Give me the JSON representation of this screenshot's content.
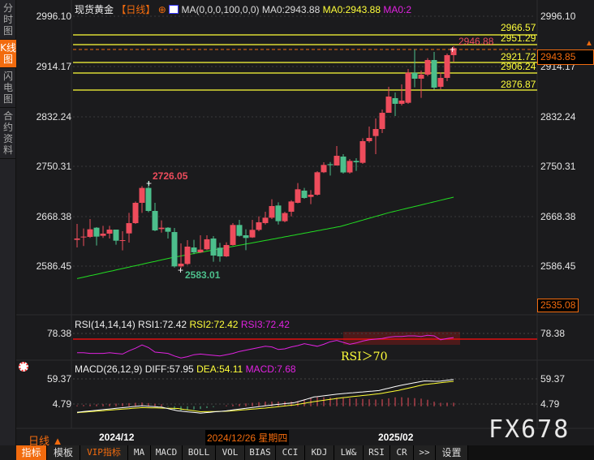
{
  "sidebar": {
    "items": [
      {
        "label": "分时图"
      },
      {
        "label": "K线图",
        "active": true
      },
      {
        "label": "闪电图"
      },
      {
        "label": "合约资料"
      }
    ]
  },
  "header": {
    "instrument": "现货黄金",
    "period": "【日线】",
    "ma_params": "MA(0,0,0,100,0,0)",
    "ma0_a": "MA0:2943.88",
    "ma0_b": "MA0:2943.88",
    "ma0_c": "MA0:2"
  },
  "price_axis": {
    "labels": [
      "2996.10",
      "2914.17",
      "2832.24",
      "2750.31",
      "2668.38",
      "2586.45"
    ],
    "current_price": "2943.85",
    "bottom_value": "2535.08"
  },
  "levels": [
    "2966.57",
    "2951.29",
    "2921.72",
    "2906.24",
    "2876.87"
  ],
  "annotations": {
    "high": "2726.05",
    "low": "2583.01",
    "latest_high": "2946.88"
  },
  "rsi": {
    "title": "RSI(14,14,14) RSI1:72.42",
    "rsi2": "RSI2:72.42",
    "rsi3": "RSI3:72.42",
    "axis_label": "78.38",
    "note": "RSI＞70"
  },
  "macd": {
    "title": "MACD(26,12,9) DIFF:57.95",
    "dea": "DEA:54.11",
    "macd": "MACD:7.68",
    "axis_top": "59.37",
    "axis_bottom": "4.79"
  },
  "time_axis": {
    "period_button": "日线 ▲",
    "ticks": [
      "2024/12",
      "2025/02"
    ],
    "cursor_date": "2024/12/26 星期四"
  },
  "watermark": "FX678",
  "toolbar": [
    "指标",
    "模板",
    "VIP指标",
    "MA",
    "MACD",
    "BOLL",
    "VOL",
    "BIAS",
    "CCI",
    "KDJ",
    "LW&",
    "RSI",
    "CR",
    ">>",
    "设置"
  ],
  "colors": {
    "up": "#ee4c5c",
    "down": "#4cbf8c",
    "accent": "#f26b0e",
    "level": "#ffff3a",
    "ma": "#22dd22",
    "rsi": "#e022e0",
    "diff": "#ffffff",
    "dea": "#ffff33"
  },
  "chart_data": {
    "type": "candlestick",
    "candles": [
      [
        2629.5,
        2631.7,
        2655.6,
        2617.1
      ],
      [
        2633.5,
        2634.8,
        2648.1,
        2619.3
      ],
      [
        2634.3,
        2646.8,
        2663.6,
        2632.6
      ],
      [
        2649.4,
        2634.8,
        2650.3,
        2620.2
      ],
      [
        2636.1,
        2639.7,
        2652.5,
        2632.6
      ],
      [
        2639.7,
        2646.3,
        2652.5,
        2631.7
      ],
      [
        2646.3,
        2628.1,
        2646.3,
        2621.5
      ],
      [
        2628.1,
        2629.0,
        2643.7,
        2612.2
      ],
      [
        2640.1,
        2656.9,
        2673.8,
        2625.0
      ],
      [
        2656.9,
        2690.2,
        2692.4,
        2655.6
      ],
      [
        2690.2,
        2714.6,
        2717.7,
        2673.8
      ],
      [
        2714.6,
        2676.9,
        2726.05,
        2674.7
      ],
      [
        2676.9,
        2645.0,
        2690.2,
        2643.7
      ],
      [
        2647.2,
        2649.4,
        2661.4,
        2641.4
      ],
      [
        2649.4,
        2642.8,
        2650.3,
        2631.7
      ],
      [
        2642.3,
        2586.0,
        2649.0,
        2584.0
      ],
      [
        2586.0,
        2590.5,
        2623.7,
        2583.01
      ],
      [
        2590.0,
        2618.4,
        2629.0,
        2588.3
      ],
      [
        2617.0,
        2609.0,
        2629.5,
        2606.0
      ],
      [
        2609.0,
        2613.5,
        2637.0,
        2608.0
      ],
      [
        2614.0,
        2630.4,
        2637.0,
        2612.6
      ],
      [
        2631.7,
        2603.8,
        2635.7,
        2593.6
      ],
      [
        2616.6,
        2602.4,
        2624.6,
        2593.6
      ],
      [
        2602.4,
        2621.0,
        2625.5,
        2601.5
      ],
      [
        2621.0,
        2653.9,
        2657.0,
        2620.0
      ],
      [
        2653.9,
        2636.1,
        2662.3,
        2634.8
      ],
      [
        2637.0,
        2632.6,
        2646.8,
        2612.6
      ],
      [
        2633.5,
        2645.9,
        2662.3,
        2632.6
      ],
      [
        2645.9,
        2658.3,
        2668.0,
        2643.7
      ],
      [
        2657.0,
        2665.8,
        2675.6,
        2654.7
      ],
      [
        2665.8,
        2684.9,
        2696.0,
        2663.6
      ],
      [
        2685.8,
        2660.1,
        2691.0,
        2654.7
      ],
      [
        2660.1,
        2673.4,
        2675.6,
        2658.3
      ],
      [
        2675.6,
        2692.4,
        2694.6,
        2668.0
      ],
      [
        2690.2,
        2712.4,
        2722.6,
        2689.3
      ],
      [
        2710.2,
        2698.2,
        2714.6,
        2696.9
      ],
      [
        2699.9,
        2703.5,
        2711.0,
        2688.0
      ],
      [
        2703.5,
        2740.3,
        2742.0,
        2702.0
      ],
      [
        2740.3,
        2752.3,
        2756.7,
        2739.0
      ],
      [
        2753.5,
        2752.0,
        2757.0,
        2735.0
      ],
      [
        2751.4,
        2767.3,
        2783.3,
        2751.4
      ],
      [
        2766.0,
        2740.0,
        2770.0,
        2738.0
      ],
      [
        2740.0,
        2758.9,
        2762.0,
        2738.0
      ],
      [
        2758.9,
        2756.7,
        2763.4,
        2742.5
      ],
      [
        2755.8,
        2791.3,
        2796.0,
        2754.0
      ],
      [
        2791.3,
        2796.6,
        2815.2,
        2789.0
      ],
      [
        2799.7,
        2811.2,
        2828.5,
        2770.0
      ],
      [
        2811.2,
        2837.8,
        2843.2,
        2804.6
      ],
      [
        2837.8,
        2864.4,
        2880.4,
        2837.8
      ],
      [
        2861.8,
        2852.5,
        2871.1,
        2832.5
      ],
      [
        2852.5,
        2857.8,
        2884.4,
        2849.8
      ],
      [
        2854.2,
        2903.4,
        2909.6,
        2852.5
      ],
      [
        2903.4,
        2893.7,
        2941.6,
        2879.5
      ],
      [
        2893.7,
        2900.3,
        2907.0,
        2862.2
      ],
      [
        2900.3,
        2924.3,
        2927.4,
        2897.7
      ],
      [
        2924.3,
        2879.1,
        2937.6,
        2875.5
      ],
      [
        2880.4,
        2895.0,
        2903.9,
        2876.4
      ],
      [
        2895.0,
        2932.3,
        2934.9,
        2889.7
      ],
      [
        2932.3,
        2943.85,
        2946.88,
        2921.7
      ]
    ],
    "ma100": [
      [
        0,
        2566
      ],
      [
        14.75,
        2600.7
      ],
      [
        27.25,
        2625
      ],
      [
        40.6,
        2651.6
      ],
      [
        48,
        2674
      ],
      [
        58,
        2699.5
      ]
    ],
    "rsi": [
      49,
      49,
      48,
      48,
      48,
      49,
      48,
      47,
      52,
      56,
      61,
      57,
      50,
      49,
      48,
      44,
      41,
      43,
      46,
      47,
      46,
      45,
      44,
      46,
      48,
      51,
      53,
      55,
      57,
      59,
      58,
      54,
      55,
      58,
      60,
      63,
      61,
      59,
      62,
      66,
      68,
      65,
      62,
      64,
      67,
      69,
      70,
      71,
      73,
      74,
      74,
      75,
      75,
      74,
      76,
      75,
      69,
      71,
      72.42
    ],
    "diff": [
      [
        0,
        -13
      ],
      [
        10,
        1
      ],
      [
        13,
        -2
      ],
      [
        15.5,
        -10
      ],
      [
        19,
        -15
      ],
      [
        23,
        -10
      ],
      [
        29,
        1
      ],
      [
        33.6,
        8
      ],
      [
        36.5,
        20
      ],
      [
        40.6,
        27
      ],
      [
        46.5,
        34
      ],
      [
        49.4,
        44
      ],
      [
        53.5,
        55
      ],
      [
        55.6,
        54
      ],
      [
        58,
        57.95
      ]
    ],
    "dea": [
      [
        0,
        -14
      ],
      [
        10,
        -3
      ],
      [
        15.5,
        -5
      ],
      [
        19,
        -12
      ],
      [
        23,
        -11
      ],
      [
        29,
        -4
      ],
      [
        33.6,
        3
      ],
      [
        36.5,
        10
      ],
      [
        40.6,
        18
      ],
      [
        46.5,
        27
      ],
      [
        49.4,
        34
      ],
      [
        53.5,
        47
      ],
      [
        58,
        54.11
      ]
    ],
    "ylim": [
      2535.08,
      2996.1
    ]
  }
}
